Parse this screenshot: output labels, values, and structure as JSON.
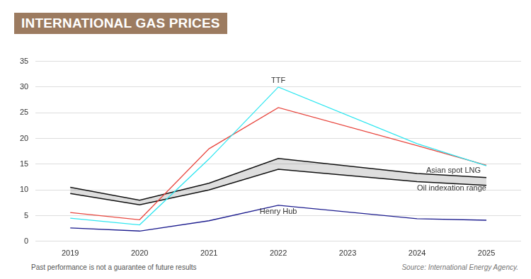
{
  "chart_data": {
    "type": "line",
    "title": "INTERNATIONAL GAS PRICES",
    "categories": [
      "2019",
      "2020",
      "2021",
      "2022",
      "2023",
      "2024",
      "2025"
    ],
    "series": [
      {
        "name": "TTF",
        "color": "#2ee6f0",
        "values": [
          4.5,
          3.2,
          16,
          30,
          null,
          19,
          14.7
        ]
      },
      {
        "name": "Asian spot LNG",
        "color": "#e8473f",
        "values": [
          5.6,
          4.2,
          18,
          26,
          null,
          18.6,
          14.8
        ]
      },
      {
        "name": "Oil indexation range",
        "type": "range",
        "color": "#111111",
        "low": [
          9.3,
          7.1,
          10,
          14,
          null,
          11.6,
          10.9
        ],
        "high": [
          10.5,
          8,
          11.3,
          16.1,
          null,
          13.2,
          12.4
        ]
      },
      {
        "name": "Henry Hub",
        "color": "#1c1c8e",
        "values": [
          2.6,
          2.0,
          4,
          7,
          null,
          4.4,
          4.1
        ]
      }
    ],
    "ylim": [
      0,
      35
    ],
    "yticks": [
      0,
      5,
      10,
      15,
      20,
      25,
      30,
      35
    ],
    "grid": true,
    "annotations": [
      {
        "text": "TTF",
        "x": "2022",
        "y": 31.2
      },
      {
        "text": "Asian spot LNG",
        "x": "2025",
        "y": 13.8
      },
      {
        "text": "Oil indexation range",
        "x": "2024",
        "y": 10.3
      },
      {
        "text": "Henry Hub",
        "x": "2022",
        "y": 5.7
      }
    ],
    "footnote": "Past performance is not a guarantee of future results",
    "source": "Source: International Energy Agency."
  }
}
